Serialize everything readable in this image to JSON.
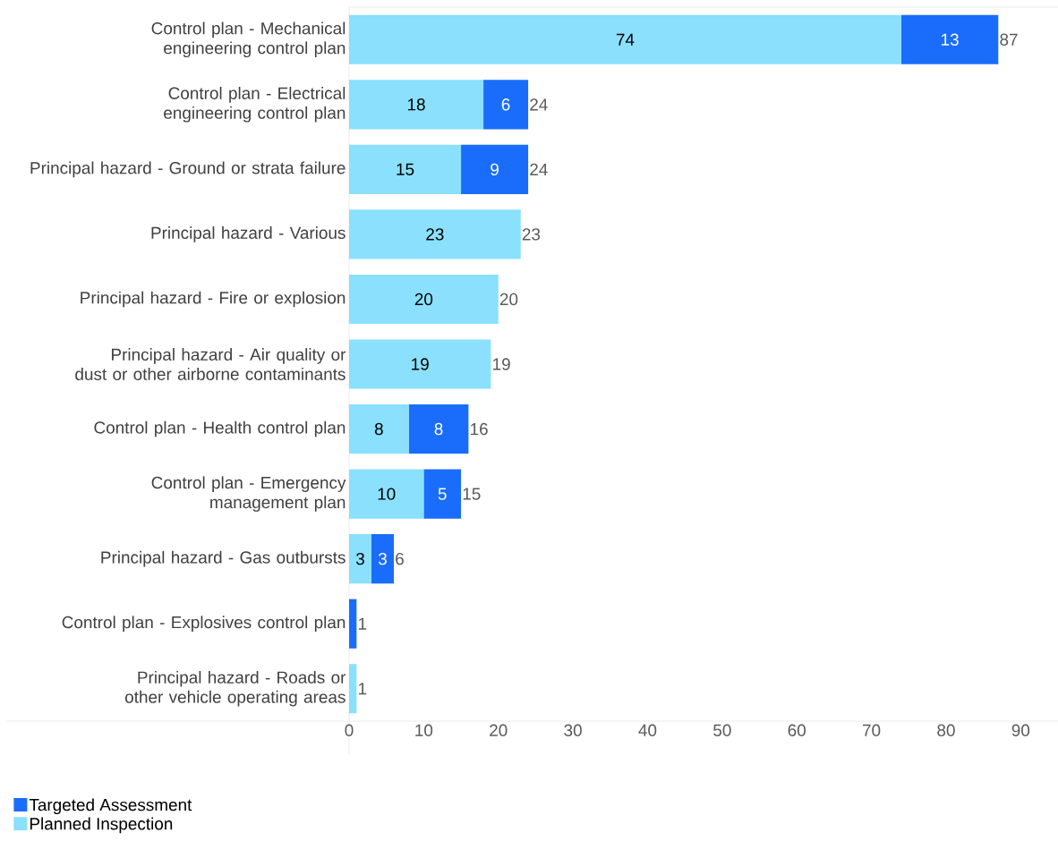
{
  "chart_data": {
    "type": "bar",
    "orientation": "horizontal",
    "stacked": true,
    "categories": [
      "Control plan - Mechanical engineering control plan",
      "Control plan - Electrical engineering control plan",
      "Principal hazard - Ground or strata failure",
      "Principal hazard - Various",
      "Principal hazard - Fire or explosion",
      "Principal hazard - Air quality or dust or other airborne contaminants",
      "Control plan - Health control plan",
      "Control plan - Emergency management plan",
      "Principal hazard - Gas outbursts",
      "Control plan - Explosives control plan",
      "Principal hazard - Roads or other vehicle operating areas"
    ],
    "series": [
      {
        "name": "Planned Inspection",
        "color": "#8ae0fd",
        "values": [
          74,
          18,
          15,
          23,
          20,
          19,
          8,
          10,
          3,
          null,
          1
        ],
        "value_labels": [
          "74",
          "18",
          "15",
          "23",
          "20",
          "19",
          "8",
          "10",
          "3",
          null,
          null
        ]
      },
      {
        "name": "Targeted Assessment",
        "color": "#1a6dfa",
        "values": [
          13,
          6,
          9,
          null,
          null,
          null,
          8,
          5,
          3,
          1,
          null
        ],
        "value_labels": [
          "13",
          "6",
          "9",
          null,
          null,
          null,
          "8",
          "5",
          "3",
          null,
          null
        ]
      }
    ],
    "totals": [
      "87",
      "24",
      "24",
      "23",
      "20",
      "19",
      "16",
      "15",
      "6",
      "1",
      "1"
    ],
    "xlim": [
      0,
      95
    ],
    "xticks": [
      0,
      10,
      20,
      30,
      40,
      50,
      60,
      70,
      80,
      90
    ],
    "legend": "bottom left"
  }
}
